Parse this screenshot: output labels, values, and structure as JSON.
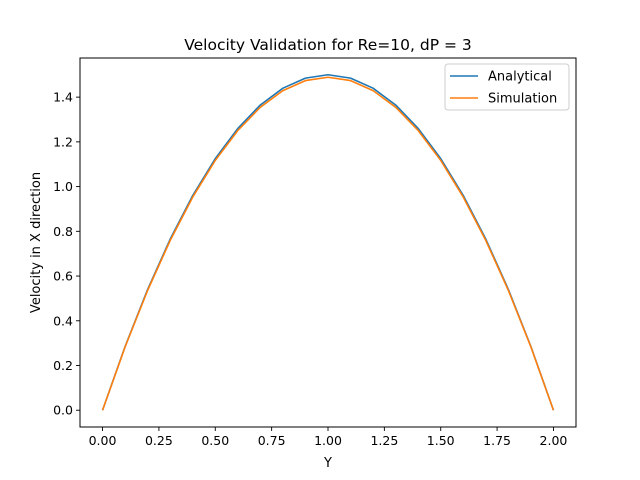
{
  "chart_data": {
    "type": "line",
    "title": "Velocity Validation for Re=10, dP = 3",
    "xlabel": "Y",
    "ylabel": "Velocity in X direction",
    "xlim": [
      -0.1,
      2.1
    ],
    "ylim": [
      -0.075,
      1.575
    ],
    "xticks": [
      0.0,
      0.25,
      0.5,
      0.75,
      1.0,
      1.25,
      1.5,
      1.75,
      2.0
    ],
    "xtick_labels": [
      "0.00",
      "0.25",
      "0.50",
      "0.75",
      "1.00",
      "1.25",
      "1.50",
      "1.75",
      "2.00"
    ],
    "yticks": [
      0.0,
      0.2,
      0.4,
      0.6,
      0.8,
      1.0,
      1.2,
      1.4
    ],
    "ytick_labels": [
      "0.0",
      "0.2",
      "0.4",
      "0.6",
      "0.8",
      "1.0",
      "1.2",
      "1.4"
    ],
    "grid": false,
    "legend_position": "top-right",
    "x": [
      0.0,
      0.1,
      0.2,
      0.3,
      0.4,
      0.5,
      0.6,
      0.7,
      0.8,
      0.9,
      1.0,
      1.1,
      1.2,
      1.3,
      1.4,
      1.5,
      1.6,
      1.7,
      1.8,
      1.9,
      2.0
    ],
    "series": [
      {
        "name": "Analytical",
        "color": "#1f77b4",
        "values": [
          0.0,
          0.285,
          0.54,
          0.765,
          0.96,
          1.125,
          1.26,
          1.365,
          1.44,
          1.485,
          1.5,
          1.485,
          1.44,
          1.365,
          1.26,
          1.125,
          0.96,
          0.765,
          0.54,
          0.285,
          0.0
        ]
      },
      {
        "name": "Simulation",
        "color": "#ff7f0e",
        "values": [
          0.0,
          0.283,
          0.536,
          0.759,
          0.953,
          1.117,
          1.251,
          1.355,
          1.429,
          1.474,
          1.489,
          1.474,
          1.429,
          1.355,
          1.251,
          1.117,
          0.953,
          0.759,
          0.536,
          0.283,
          0.0
        ]
      }
    ]
  }
}
